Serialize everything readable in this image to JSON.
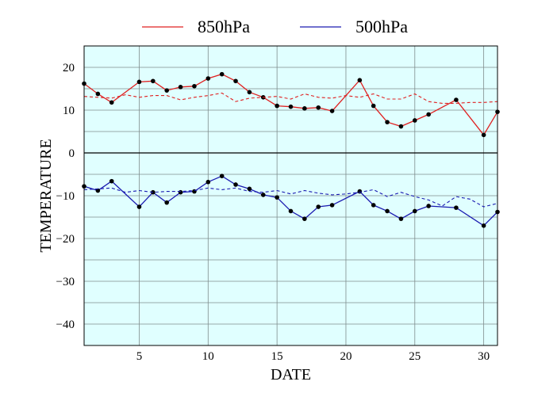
{
  "chart_data": {
    "type": "line",
    "xlabel": "DATE",
    "ylabel": "TEMPERATURE",
    "xlim": [
      1,
      31
    ],
    "ylim": [
      -45,
      25
    ],
    "xticks": [
      5,
      10,
      15,
      20,
      25,
      30
    ],
    "yticks": [
      -40,
      -30,
      -20,
      -10,
      0,
      10,
      20
    ],
    "grid": true,
    "legend_position": "top",
    "background": "#e0ffff",
    "series": [
      {
        "name": "850hPa",
        "color": "#e02020",
        "style": "solid",
        "markers": true,
        "points": [
          [
            1,
            16.2
          ],
          [
            2,
            13.8
          ],
          [
            3,
            11.8
          ],
          [
            5,
            16.6
          ],
          [
            6,
            16.8
          ],
          [
            7,
            14.6
          ],
          [
            8,
            15.4
          ],
          [
            9,
            15.6
          ],
          [
            10,
            17.4
          ],
          [
            11,
            18.4
          ],
          [
            12,
            16.8
          ],
          [
            13,
            14.2
          ],
          [
            14,
            13.0
          ],
          [
            15,
            11.0
          ],
          [
            16,
            10.8
          ],
          [
            17,
            10.4
          ],
          [
            18,
            10.6
          ],
          [
            19,
            9.8
          ],
          [
            21,
            17.0
          ],
          [
            22,
            11.0
          ],
          [
            23,
            7.2
          ],
          [
            24,
            6.2
          ],
          [
            25,
            7.6
          ],
          [
            26,
            9.0
          ],
          [
            28,
            12.4
          ],
          [
            30,
            4.2
          ],
          [
            31,
            9.6
          ]
        ]
      },
      {
        "name": "",
        "color": "#e02020",
        "style": "dashed",
        "markers": false,
        "points": [
          [
            1,
            13.2
          ],
          [
            2,
            13.0
          ],
          [
            3,
            12.8
          ],
          [
            4,
            13.6
          ],
          [
            5,
            13.0
          ],
          [
            6,
            13.4
          ],
          [
            7,
            13.4
          ],
          [
            8,
            12.4
          ],
          [
            9,
            13.0
          ],
          [
            10,
            13.4
          ],
          [
            11,
            14.0
          ],
          [
            12,
            12.0
          ],
          [
            13,
            12.8
          ],
          [
            14,
            13.0
          ],
          [
            15,
            13.2
          ],
          [
            16,
            12.6
          ],
          [
            17,
            13.8
          ],
          [
            18,
            13.0
          ],
          [
            19,
            12.8
          ],
          [
            20,
            13.4
          ],
          [
            21,
            13.0
          ],
          [
            22,
            13.8
          ],
          [
            23,
            12.6
          ],
          [
            24,
            12.6
          ],
          [
            25,
            13.8
          ],
          [
            26,
            12.0
          ],
          [
            27,
            11.6
          ],
          [
            28,
            11.6
          ],
          [
            29,
            11.8
          ],
          [
            30,
            11.8
          ],
          [
            31,
            12.0
          ]
        ]
      },
      {
        "name": "500hPa",
        "color": "#1a1ab0",
        "style": "solid",
        "markers": true,
        "points": [
          [
            1,
            -7.8
          ],
          [
            2,
            -8.8
          ],
          [
            3,
            -6.6
          ],
          [
            5,
            -12.6
          ],
          [
            6,
            -9.2
          ],
          [
            7,
            -11.6
          ],
          [
            8,
            -9.2
          ],
          [
            9,
            -9.0
          ],
          [
            10,
            -6.8
          ],
          [
            11,
            -5.4
          ],
          [
            12,
            -7.4
          ],
          [
            13,
            -8.4
          ],
          [
            14,
            -9.8
          ],
          [
            15,
            -10.4
          ],
          [
            16,
            -13.6
          ],
          [
            17,
            -15.4
          ],
          [
            18,
            -12.6
          ],
          [
            19,
            -12.2
          ],
          [
            21,
            -9.0
          ],
          [
            22,
            -12.2
          ],
          [
            23,
            -13.6
          ],
          [
            24,
            -15.4
          ],
          [
            25,
            -13.6
          ],
          [
            26,
            -12.4
          ],
          [
            28,
            -12.8
          ],
          [
            30,
            -17.0
          ],
          [
            31,
            -13.8
          ]
        ]
      },
      {
        "name": "",
        "color": "#1a1ab0",
        "style": "dashed",
        "markers": false,
        "points": [
          [
            1,
            -8.6
          ],
          [
            2,
            -8.4
          ],
          [
            3,
            -8.2
          ],
          [
            4,
            -9.2
          ],
          [
            5,
            -8.8
          ],
          [
            6,
            -9.2
          ],
          [
            7,
            -9.0
          ],
          [
            8,
            -9.0
          ],
          [
            9,
            -8.8
          ],
          [
            10,
            -8.2
          ],
          [
            11,
            -8.6
          ],
          [
            12,
            -8.2
          ],
          [
            13,
            -9.0
          ],
          [
            14,
            -9.2
          ],
          [
            15,
            -8.8
          ],
          [
            16,
            -9.6
          ],
          [
            17,
            -8.8
          ],
          [
            18,
            -9.4
          ],
          [
            19,
            -9.8
          ],
          [
            20,
            -9.6
          ],
          [
            21,
            -9.2
          ],
          [
            22,
            -8.6
          ],
          [
            23,
            -10.2
          ],
          [
            24,
            -9.2
          ],
          [
            25,
            -10.2
          ],
          [
            26,
            -11.0
          ],
          [
            27,
            -12.4
          ],
          [
            28,
            -10.2
          ],
          [
            29,
            -10.8
          ],
          [
            30,
            -12.6
          ],
          [
            31,
            -11.8
          ]
        ]
      }
    ]
  }
}
